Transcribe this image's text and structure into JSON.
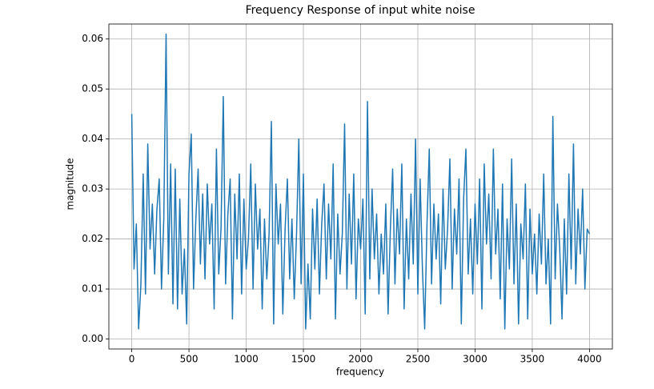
{
  "chart_data": {
    "type": "line",
    "title": "Frequency Response of input white noise",
    "xlabel": "frequency",
    "ylabel": "magnitude",
    "color": "#1f77b4",
    "grid": true,
    "xlim": [
      -200,
      4200
    ],
    "ylim": [
      -0.002,
      0.063
    ],
    "xticks": [
      0,
      500,
      1000,
      1500,
      2000,
      2500,
      3000,
      3500,
      4000
    ],
    "yticks": [
      {
        "value": 0,
        "label": "0.00"
      },
      0.01,
      0.02,
      0.03,
      0.04,
      0.05,
      0.06
    ],
    "x": [
      0,
      20,
      40,
      60,
      80,
      100,
      120,
      140,
      160,
      180,
      200,
      220,
      240,
      260,
      280,
      300,
      320,
      340,
      360,
      380,
      400,
      420,
      440,
      460,
      480,
      500,
      520,
      540,
      560,
      580,
      600,
      620,
      640,
      660,
      680,
      700,
      720,
      740,
      760,
      780,
      800,
      820,
      840,
      860,
      880,
      900,
      920,
      940,
      960,
      980,
      1000,
      1020,
      1040,
      1060,
      1080,
      1100,
      1120,
      1140,
      1160,
      1180,
      1200,
      1220,
      1240,
      1260,
      1280,
      1300,
      1320,
      1340,
      1360,
      1380,
      1400,
      1420,
      1440,
      1460,
      1480,
      1500,
      1520,
      1540,
      1560,
      1580,
      1600,
      1620,
      1640,
      1660,
      1680,
      1700,
      1720,
      1740,
      1760,
      1780,
      1800,
      1820,
      1840,
      1860,
      1880,
      1900,
      1920,
      1940,
      1960,
      1980,
      2000,
      2020,
      2040,
      2060,
      2080,
      2100,
      2120,
      2140,
      2160,
      2180,
      2200,
      2220,
      2240,
      2260,
      2280,
      2300,
      2320,
      2340,
      2360,
      2380,
      2400,
      2420,
      2440,
      2460,
      2480,
      2500,
      2520,
      2540,
      2560,
      2580,
      2600,
      2620,
      2640,
      2660,
      2680,
      2700,
      2720,
      2740,
      2760,
      2780,
      2800,
      2820,
      2840,
      2860,
      2880,
      2900,
      2920,
      2940,
      2960,
      2980,
      3000,
      3020,
      3040,
      3060,
      3080,
      3100,
      3120,
      3140,
      3160,
      3180,
      3200,
      3220,
      3240,
      3260,
      3280,
      3300,
      3320,
      3340,
      3360,
      3380,
      3400,
      3420,
      3440,
      3460,
      3480,
      3500,
      3520,
      3540,
      3560,
      3580,
      3600,
      3620,
      3640,
      3660,
      3680,
      3700,
      3720,
      3740,
      3760,
      3780,
      3800,
      3820,
      3840,
      3860,
      3880,
      3900,
      3920,
      3940,
      3960,
      3980,
      4000
    ],
    "values": [
      0.045,
      0.014,
      0.023,
      0.002,
      0.011,
      0.033,
      0.009,
      0.039,
      0.018,
      0.027,
      0.013,
      0.026,
      0.032,
      0.01,
      0.024,
      0.061,
      0.013,
      0.035,
      0.007,
      0.034,
      0.006,
      0.028,
      0.009,
      0.018,
      0.003,
      0.033,
      0.041,
      0.01,
      0.024,
      0.034,
      0.015,
      0.029,
      0.012,
      0.031,
      0.019,
      0.027,
      0.006,
      0.038,
      0.013,
      0.022,
      0.0485,
      0.011,
      0.025,
      0.032,
      0.004,
      0.029,
      0.016,
      0.033,
      0.009,
      0.028,
      0.014,
      0.02,
      0.035,
      0.01,
      0.031,
      0.018,
      0.026,
      0.006,
      0.024,
      0.012,
      0.021,
      0.0435,
      0.003,
      0.031,
      0.019,
      0.027,
      0.005,
      0.022,
      0.032,
      0.012,
      0.024,
      0.008,
      0.021,
      0.04,
      0.011,
      0.033,
      0.002,
      0.015,
      0.004,
      0.026,
      0.014,
      0.028,
      0.009,
      0.023,
      0.031,
      0.012,
      0.027,
      0.016,
      0.035,
      0.004,
      0.025,
      0.013,
      0.021,
      0.043,
      0.01,
      0.029,
      0.015,
      0.033,
      0.008,
      0.024,
      0.018,
      0.028,
      0.005,
      0.0475,
      0.012,
      0.03,
      0.016,
      0.025,
      0.009,
      0.021,
      0.013,
      0.027,
      0.005,
      0.022,
      0.034,
      0.011,
      0.026,
      0.017,
      0.035,
      0.006,
      0.024,
      0.012,
      0.029,
      0.015,
      0.04,
      0.009,
      0.032,
      0.014,
      0.002,
      0.023,
      0.038,
      0.011,
      0.027,
      0.016,
      0.025,
      0.007,
      0.03,
      0.014,
      0.022,
      0.036,
      0.01,
      0.026,
      0.017,
      0.032,
      0.003,
      0.028,
      0.038,
      0.013,
      0.024,
      0.009,
      0.027,
      0.015,
      0.032,
      0.006,
      0.035,
      0.019,
      0.029,
      0.012,
      0.038,
      0.017,
      0.026,
      0.008,
      0.031,
      0.002,
      0.024,
      0.014,
      0.036,
      0.011,
      0.027,
      0.003,
      0.023,
      0.016,
      0.031,
      0.004,
      0.026,
      0.013,
      0.021,
      0.009,
      0.025,
      0.015,
      0.033,
      0.011,
      0.02,
      0.003,
      0.0445,
      0.012,
      0.027,
      0.018,
      0.004,
      0.024,
      0.009,
      0.033,
      0.014,
      0.039,
      0.011,
      0.026,
      0.017,
      0.03,
      0.01,
      0.022,
      0.021
    ]
  }
}
